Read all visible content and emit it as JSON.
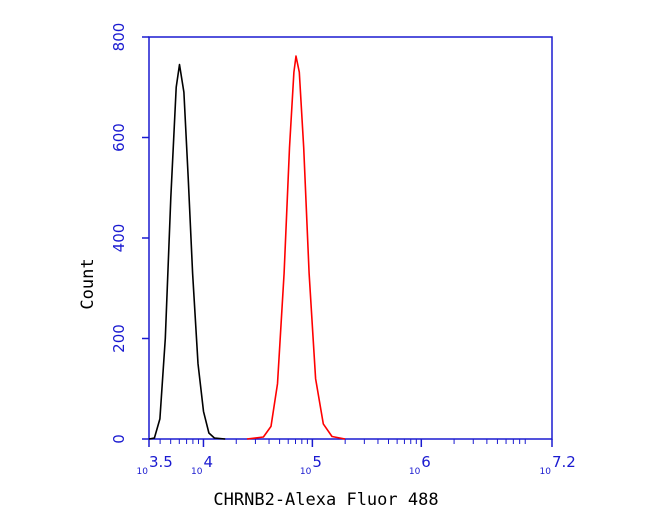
{
  "chart_data": {
    "type": "line",
    "title": "",
    "xlabel": "CHRNB2-Alexa Fluor 488",
    "ylabel": "Count",
    "x_scale": "log10",
    "xlim": [
      3.5,
      7.2
    ],
    "ylim": [
      0,
      800
    ],
    "grid": false,
    "y_ticks": [
      {
        "value": 0,
        "label": "0"
      },
      {
        "value": 200,
        "label": "200"
      },
      {
        "value": 400,
        "label": "400"
      },
      {
        "value": 600,
        "label": "600"
      },
      {
        "value": 800,
        "label": "800"
      }
    ],
    "x_ticks": [
      {
        "exp": 3.5,
        "base": "10",
        "label": "3.5"
      },
      {
        "exp": 4,
        "base": "10",
        "label": "4"
      },
      {
        "exp": 5,
        "base": "10",
        "label": "5"
      },
      {
        "exp": 6,
        "base": "10",
        "label": "6"
      },
      {
        "exp": 7.2,
        "base": "10",
        "label": "7.2"
      }
    ],
    "series": [
      {
        "color": "#000000",
        "points": [
          [
            3.5,
            0
          ],
          [
            3.55,
            2
          ],
          [
            3.6,
            40
          ],
          [
            3.65,
            200
          ],
          [
            3.7,
            480
          ],
          [
            3.75,
            700
          ],
          [
            3.78,
            745
          ],
          [
            3.82,
            690
          ],
          [
            3.86,
            520
          ],
          [
            3.9,
            330
          ],
          [
            3.95,
            150
          ],
          [
            4.0,
            55
          ],
          [
            4.05,
            12
          ],
          [
            4.1,
            2
          ],
          [
            4.2,
            0
          ]
        ]
      },
      {
        "color": "#ff0000",
        "points": [
          [
            4.4,
            0
          ],
          [
            4.55,
            4
          ],
          [
            4.62,
            25
          ],
          [
            4.68,
            110
          ],
          [
            4.74,
            330
          ],
          [
            4.79,
            580
          ],
          [
            4.83,
            730
          ],
          [
            4.85,
            762
          ],
          [
            4.88,
            730
          ],
          [
            4.92,
            580
          ],
          [
            4.97,
            330
          ],
          [
            5.03,
            120
          ],
          [
            5.1,
            30
          ],
          [
            5.18,
            5
          ],
          [
            5.3,
            0
          ]
        ]
      }
    ]
  }
}
